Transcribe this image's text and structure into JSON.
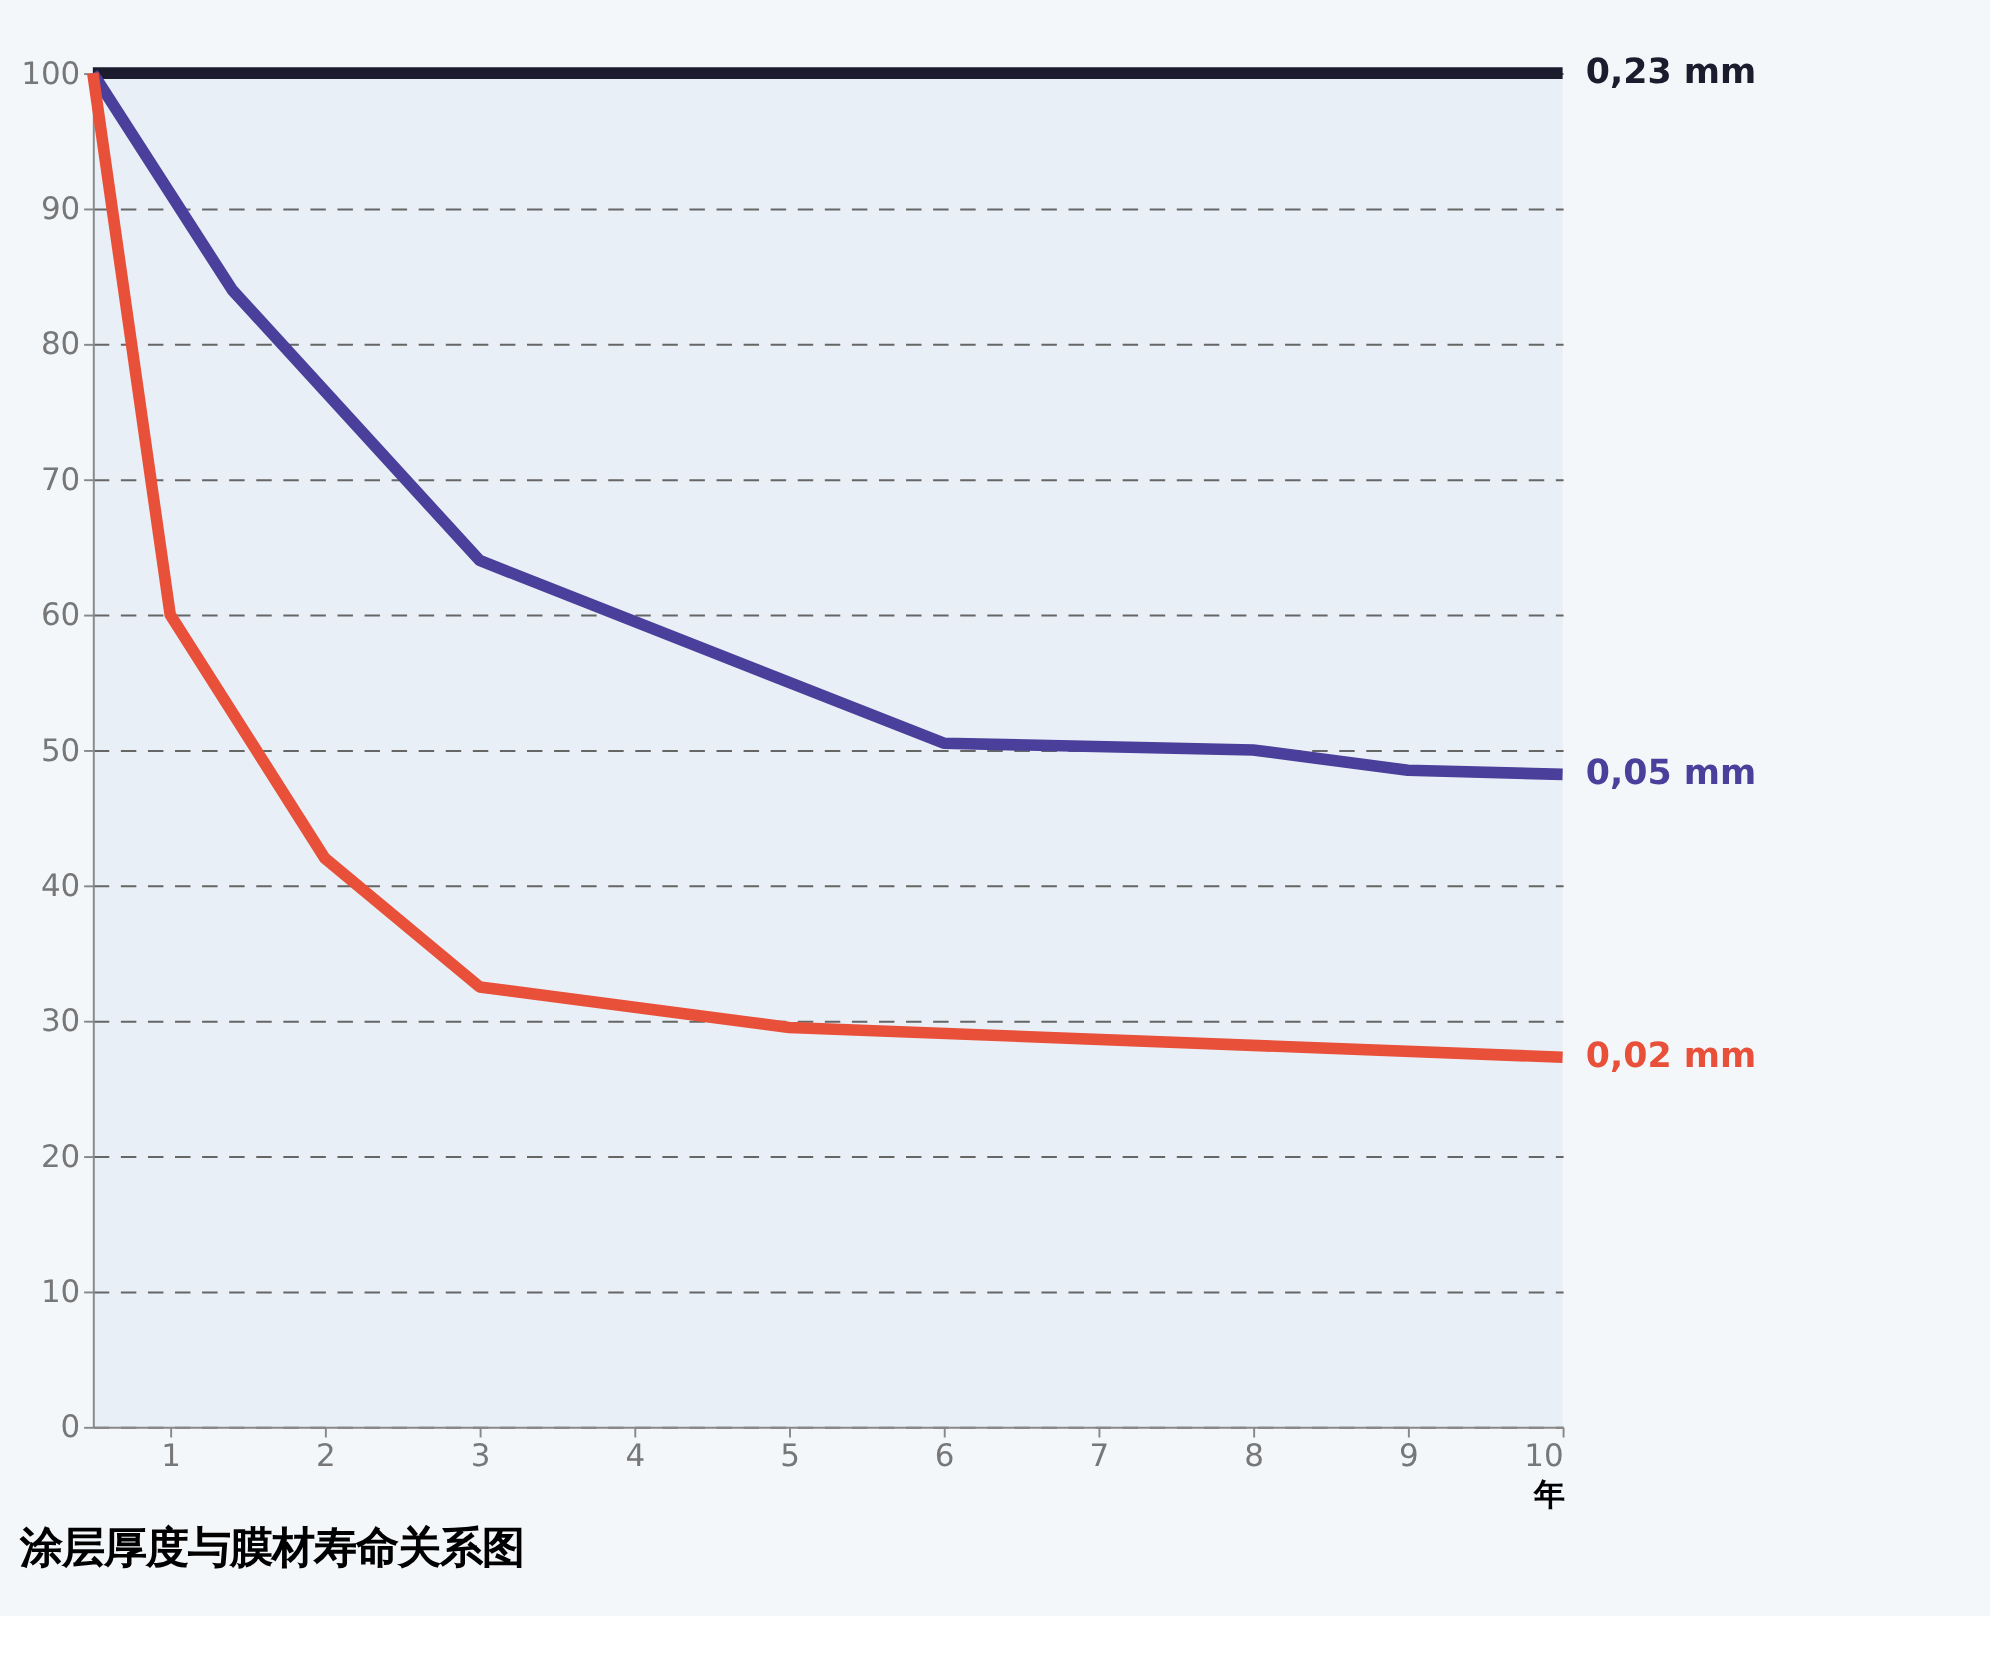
{
  "chart_data": {
    "type": "line",
    "title": "涂层厚度与膜材寿命关系图",
    "xlabel": "年",
    "xlim": [
      0.5,
      10
    ],
    "ylim": [
      0,
      100
    ],
    "xticks": [
      1,
      2,
      3,
      4,
      5,
      6,
      7,
      8,
      9,
      10
    ],
    "yticks": [
      0,
      10,
      20,
      30,
      40,
      50,
      60,
      70,
      80,
      90,
      100
    ],
    "grid": "y",
    "series": [
      {
        "name": "0,23 mm",
        "color": "#1c1c2e",
        "x": [
          0.5,
          10
        ],
        "values": [
          100,
          100
        ]
      },
      {
        "name": "0,05 mm",
        "color": "#4a3f9a",
        "x": [
          0.5,
          1.4,
          3,
          6,
          8,
          9,
          10
        ],
        "values": [
          100,
          84,
          64,
          50.5,
          50,
          48.5,
          48.2
        ]
      },
      {
        "name": "0,02 mm",
        "color": "#e8503a",
        "x": [
          0.5,
          1,
          2,
          3,
          5,
          10
        ],
        "values": [
          100,
          60,
          42,
          32.5,
          29.5,
          27.3
        ]
      }
    ]
  }
}
